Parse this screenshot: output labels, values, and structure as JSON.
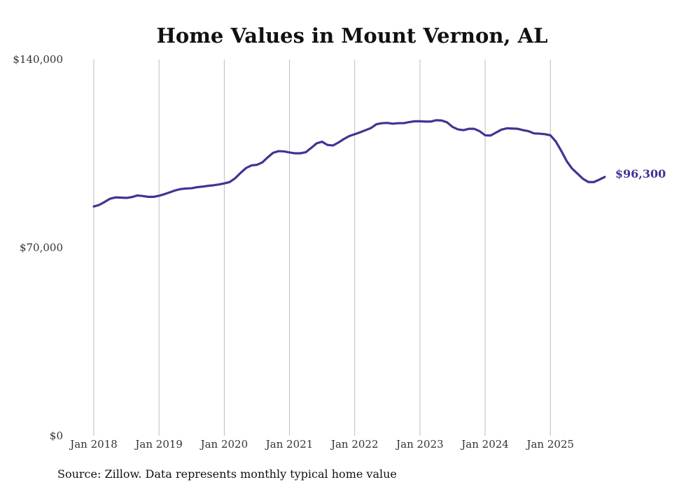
{
  "chart_data": {
    "type": "line",
    "title": "Home Values in Mount Vernon, AL",
    "source": "Source: Zillow. Data represents monthly typical home value",
    "xlabel": "",
    "ylabel": "",
    "ylim": [
      0,
      140000
    ],
    "y_ticks": [
      {
        "value": 0,
        "label": "$0"
      },
      {
        "value": 70000,
        "label": "$70,000"
      },
      {
        "value": 140000,
        "label": "$140,000"
      }
    ],
    "x_ticks": [
      {
        "label": "Jan 2018",
        "index": 0
      },
      {
        "label": "Jan 2019",
        "index": 12
      },
      {
        "label": "Jan 2020",
        "index": 24
      },
      {
        "label": "Jan 2021",
        "index": 36
      },
      {
        "label": "Jan 2022",
        "index": 48
      },
      {
        "label": "Jan 2023",
        "index": 60
      },
      {
        "label": "Jan 2024",
        "index": 72
      },
      {
        "label": "Jan 2025",
        "index": 84
      }
    ],
    "grid": "vertical",
    "line_color": "#3d3593",
    "end_label": "$96,300",
    "series": [
      {
        "name": "Typical home value",
        "start": "Jan 2018",
        "frequency": "monthly",
        "values": [
          85300,
          85900,
          87000,
          88200,
          88700,
          88600,
          88500,
          88800,
          89400,
          89200,
          88900,
          88900,
          89300,
          89900,
          90600,
          91300,
          91800,
          92000,
          92100,
          92500,
          92700,
          93000,
          93200,
          93500,
          93900,
          94400,
          95800,
          97800,
          99600,
          100600,
          100800,
          101700,
          103600,
          105300,
          105900,
          105800,
          105400,
          105100,
          105100,
          105500,
          107100,
          108800,
          109400,
          108200,
          108000,
          109100,
          110400,
          111500,
          112200,
          112900,
          113700,
          114500,
          115900,
          116300,
          116400,
          116100,
          116300,
          116300,
          116700,
          117000,
          117000,
          116900,
          116900,
          117400,
          117300,
          116600,
          114900,
          114000,
          113700,
          114200,
          114200,
          113300,
          111800,
          111700,
          112800,
          113900,
          114400,
          114300,
          114200,
          113700,
          113300,
          112500,
          112400,
          112200,
          111800,
          109500,
          106000,
          102200,
          99400,
          97500,
          95600,
          94400,
          94400,
          95300,
          96300
        ]
      }
    ]
  }
}
